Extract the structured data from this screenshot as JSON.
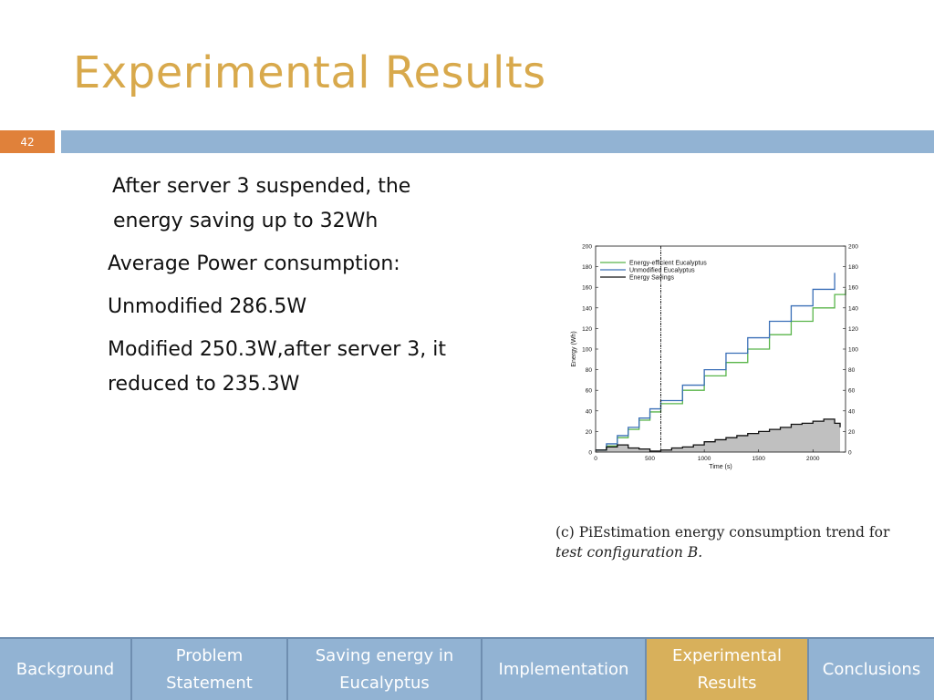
{
  "slide": {
    "title": "Experimental Results",
    "number": "42"
  },
  "body": {
    "paragraphs": [
      "After server 3 suspended, the energy saving up to 32Wh",
      "Average Power consumption:",
      "Unmodified 286.5W",
      "Modified 250.3W,after server 3, it reduced to 235.3W"
    ]
  },
  "figure": {
    "caption_prefix": "(c)  PiEstimation energy consumption trend for ",
    "caption_italic": "test configuration B."
  },
  "chart_data": {
    "type": "line",
    "xlabel": "Time (s)",
    "ylabel": "Energy (Wh)",
    "xlim": [
      0,
      2300
    ],
    "ylim": [
      0,
      200
    ],
    "x_ticks": [
      "0",
      "500",
      "1000",
      "1500",
      "2000"
    ],
    "y_ticks": [
      "0",
      "20",
      "40",
      "60",
      "80",
      "100",
      "120",
      "140",
      "160",
      "180",
      "200"
    ],
    "y2_ticks": [
      "0",
      "20",
      "40",
      "60",
      "80",
      "100",
      "120",
      "140",
      "160",
      "180",
      "200"
    ],
    "grid": false,
    "legend_position": "top-left",
    "marker_x": 600,
    "series": [
      {
        "name": "Energy-efficient Eucalyptus",
        "color": "#59b54a",
        "x": [
          0,
          100,
          200,
          300,
          400,
          500,
          600,
          800,
          1000,
          1200,
          1400,
          1600,
          1800,
          2000,
          2200,
          2300
        ],
        "y": [
          2,
          6,
          14,
          22,
          31,
          39,
          47,
          60,
          74,
          87,
          100,
          114,
          127,
          140,
          153,
          158
        ]
      },
      {
        "name": "Unmodified Eucalyptus",
        "color": "#3a6fb7",
        "x": [
          0,
          100,
          200,
          300,
          400,
          500,
          600,
          800,
          1000,
          1200,
          1400,
          1600,
          1800,
          2000,
          2200
        ],
        "y": [
          2,
          8,
          16,
          24,
          33,
          42,
          50,
          65,
          80,
          96,
          111,
          127,
          142,
          158,
          174
        ]
      },
      {
        "name": "Energy Savings",
        "color": "#111111",
        "fill": "#c0c0c0",
        "x": [
          0,
          100,
          200,
          300,
          400,
          500,
          600,
          700,
          800,
          900,
          1000,
          1100,
          1200,
          1300,
          1400,
          1500,
          1600,
          1700,
          1800,
          1900,
          2000,
          2100,
          2200,
          2250
        ],
        "y": [
          2,
          5,
          7,
          4,
          3,
          1,
          2,
          4,
          5,
          7,
          10,
          12,
          14,
          16,
          18,
          20,
          22,
          24,
          27,
          28,
          30,
          32,
          28,
          24
        ]
      }
    ]
  },
  "nav": {
    "tabs": [
      {
        "label": "Background",
        "active": false
      },
      {
        "label": "Problem Statement",
        "active": false
      },
      {
        "label": "Saving energy in Eucalyptus",
        "active": false
      },
      {
        "label": "Implementation",
        "active": false
      },
      {
        "label": "Experimental Results",
        "active": true
      },
      {
        "label": "Conclusions",
        "active": false
      }
    ]
  }
}
